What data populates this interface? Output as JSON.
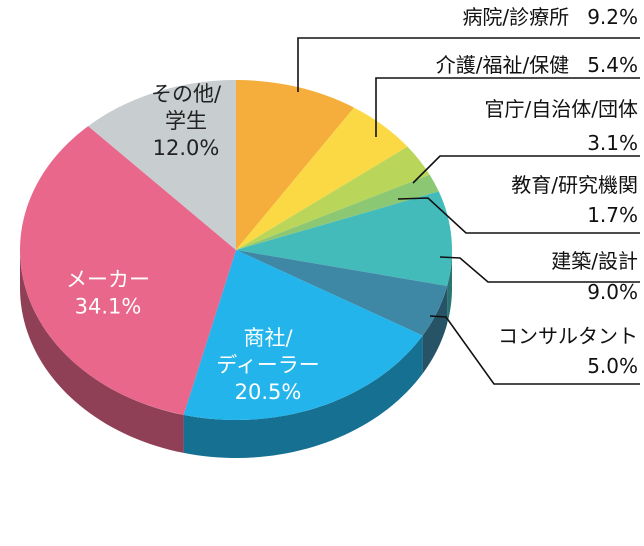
{
  "chart_data": {
    "type": "pie",
    "style": "3d",
    "slices": [
      {
        "label": "病院/診療所",
        "value": 9.2,
        "value_text": "9.2%",
        "color": "#F5AE3B",
        "label_pos": "outside"
      },
      {
        "label": "介護/福祉/保健",
        "value": 5.4,
        "value_text": "5.4%",
        "color": "#FBD944",
        "label_pos": "outside"
      },
      {
        "label": "官庁/自治体/団体",
        "value": 3.1,
        "value_text": "3.1%",
        "color": "#B9D55A",
        "label_pos": "outside"
      },
      {
        "label": "教育/研究機関",
        "value": 1.7,
        "value_text": "1.7%",
        "color": "#8CC774",
        "label_pos": "outside"
      },
      {
        "label": "建築/設計",
        "value": 9.0,
        "value_text": "9.0%",
        "color": "#44BBBB",
        "label_pos": "outside"
      },
      {
        "label": "コンサルタント",
        "value": 5.0,
        "value_text": "5.0%",
        "color": "#3E88A5",
        "label_pos": "outside"
      },
      {
        "label": "商社/ディーラー",
        "label_lines": [
          "商社/",
          "ディーラー"
        ],
        "value": 20.5,
        "value_text": "20.5%",
        "color": "#22B4EB",
        "label_pos": "inside",
        "label_color": "#ffffff"
      },
      {
        "label": "メーカー",
        "label_lines": [
          "メーカー"
        ],
        "value": 34.1,
        "value_text": "34.1%",
        "color": "#E8678A",
        "label_pos": "inside",
        "label_color": "#ffffff"
      },
      {
        "label": "その他/学生",
        "label_lines": [
          "その他/",
          "学生"
        ],
        "value": 12.0,
        "value_text": "12.0%",
        "color": "#C8CDD0",
        "label_pos": "inside",
        "label_color": "#222222"
      }
    ]
  }
}
